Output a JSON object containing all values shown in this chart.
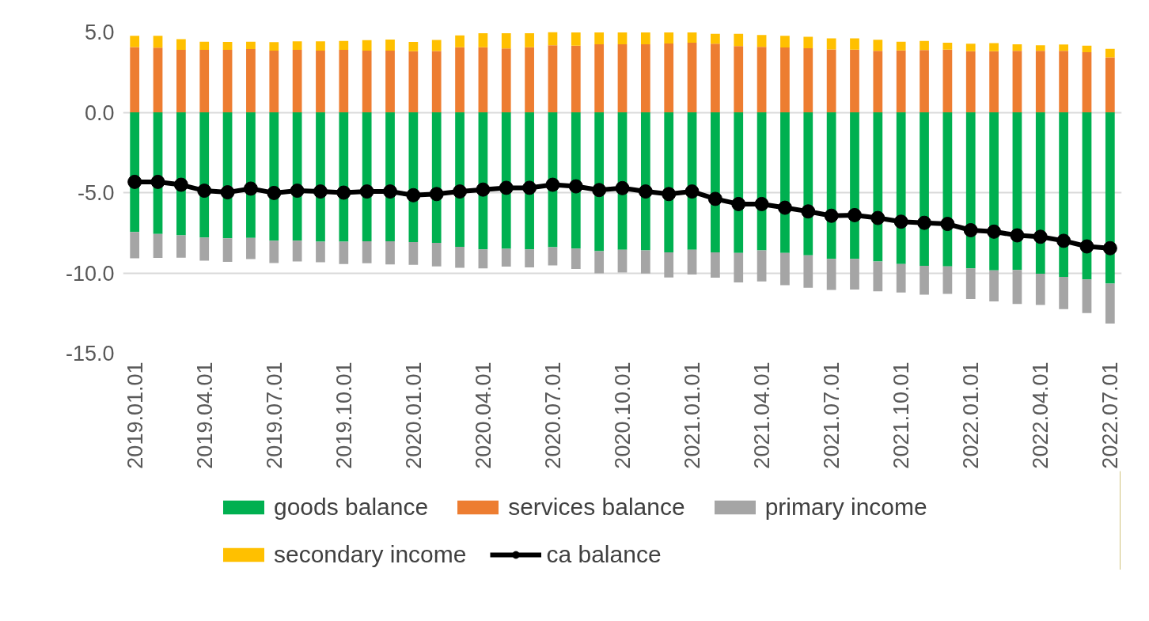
{
  "chart_data": {
    "type": "bar",
    "stacked": true,
    "categories": [
      "2019.01.01",
      null,
      null,
      "2019.04.01",
      null,
      null,
      "2019.07.01",
      null,
      null,
      "2019.10.01",
      null,
      null,
      "2020.01.01",
      null,
      null,
      "2020.04.01",
      null,
      null,
      "2020.07.01",
      null,
      null,
      "2020.10.01",
      null,
      null,
      "2021.01.01",
      null,
      null,
      "2021.04.01",
      null,
      null,
      "2021.07.01",
      null,
      null,
      "2021.10.01",
      null,
      null,
      "2022.01.01",
      null,
      null,
      "2022.04.01",
      null,
      null,
      "2022.07.01"
    ],
    "series": [
      {
        "name": "goods balance",
        "type": "bar",
        "color": "#00b050",
        "values": [
          -7.45,
          -7.57,
          -7.66,
          -7.8,
          -7.85,
          -7.82,
          -7.99,
          -7.99,
          -8.06,
          -8.06,
          -8.03,
          -8.03,
          -8.08,
          -8.13,
          -8.38,
          -8.54,
          -8.5,
          -8.54,
          -8.4,
          -8.49,
          -8.65,
          -8.56,
          -8.6,
          -8.72,
          -8.56,
          -8.72,
          -8.76,
          -8.6,
          -8.76,
          -8.9,
          -9.13,
          -9.13,
          -9.29,
          -9.45,
          -9.56,
          -9.59,
          -9.72,
          -9.84,
          -9.82,
          -10.05,
          -10.25,
          -10.41,
          -10.67
        ]
      },
      {
        "name": "services balance",
        "type": "bar",
        "color": "#ed7d31",
        "values": [
          4.07,
          4.03,
          3.89,
          3.89,
          3.89,
          3.94,
          3.84,
          3.89,
          3.84,
          3.89,
          3.84,
          3.84,
          3.8,
          3.82,
          4.05,
          4.05,
          3.98,
          4.05,
          4.17,
          4.15,
          4.24,
          4.24,
          4.24,
          4.29,
          4.33,
          4.27,
          4.13,
          4.08,
          4.04,
          3.99,
          3.92,
          3.9,
          3.83,
          3.85,
          3.88,
          3.9,
          3.81,
          3.81,
          3.83,
          3.83,
          3.83,
          3.74,
          3.42
        ]
      },
      {
        "name": "primary income",
        "type": "bar",
        "color": "#a5a5a5",
        "values": [
          -1.64,
          -1.5,
          -1.39,
          -1.44,
          -1.46,
          -1.32,
          -1.39,
          -1.3,
          -1.27,
          -1.39,
          -1.37,
          -1.44,
          -1.41,
          -1.46,
          -1.3,
          -1.18,
          -1.11,
          -1.11,
          -1.13,
          -1.26,
          -1.38,
          -1.42,
          -1.44,
          -1.56,
          -1.54,
          -1.58,
          -1.83,
          -1.93,
          -2.0,
          -2.02,
          -1.93,
          -1.9,
          -1.86,
          -1.77,
          -1.79,
          -1.72,
          -1.9,
          -1.93,
          -2.11,
          -1.95,
          -2.0,
          -2.09,
          -2.48
        ]
      },
      {
        "name": "secondary income",
        "type": "bar",
        "color": "#ffc000",
        "values": [
          0.69,
          0.74,
          0.67,
          0.51,
          0.49,
          0.46,
          0.53,
          0.53,
          0.58,
          0.56,
          0.65,
          0.69,
          0.58,
          0.69,
          0.74,
          0.88,
          0.95,
          0.88,
          0.83,
          0.83,
          0.73,
          0.73,
          0.73,
          0.69,
          0.64,
          0.62,
          0.76,
          0.73,
          0.73,
          0.71,
          0.69,
          0.71,
          0.69,
          0.55,
          0.57,
          0.44,
          0.46,
          0.5,
          0.41,
          0.34,
          0.39,
          0.41,
          0.53
        ]
      },
      {
        "name": "ca balance",
        "type": "line",
        "color": "#000000",
        "values": [
          -4.33,
          -4.33,
          -4.51,
          -4.88,
          -4.98,
          -4.75,
          -5.02,
          -4.88,
          -4.93,
          -5.0,
          -4.93,
          -4.93,
          -5.16,
          -5.09,
          -4.93,
          -4.81,
          -4.7,
          -4.7,
          -4.51,
          -4.61,
          -4.84,
          -4.72,
          -4.93,
          -5.09,
          -4.93,
          -5.39,
          -5.71,
          -5.71,
          -5.94,
          -6.17,
          -6.44,
          -6.4,
          -6.58,
          -6.81,
          -6.88,
          -6.95,
          -7.34,
          -7.43,
          -7.66,
          -7.75,
          -8.0,
          -8.35,
          -8.46
        ]
      }
    ],
    "ylim": [
      -15,
      5
    ],
    "yticks": [
      {
        "value": -15,
        "label": "-15.0"
      },
      {
        "value": -10,
        "label": "-10.0"
      },
      {
        "value": -5,
        "label": "-5.0"
      },
      {
        "value": 0,
        "label": "0.0"
      },
      {
        "value": 5,
        "label": "5.0"
      }
    ],
    "grid": "y",
    "legend": "bottom",
    "marker": "circle",
    "line_style": "solid"
  }
}
